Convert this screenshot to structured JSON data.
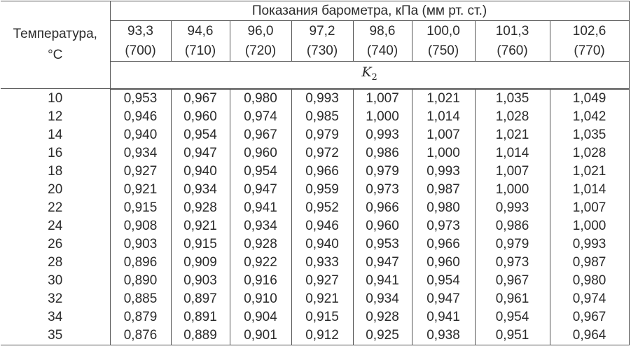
{
  "table": {
    "temp_header_line1": "Температура,",
    "temp_header_line2": "°С",
    "pressure_header": "Показания барометра, кПа (мм рт. ст.)",
    "coef_symbol": "K",
    "coef_subscript": "2",
    "pressures": [
      {
        "kpa": "93,3",
        "mmhg": "(700)"
      },
      {
        "kpa": "94,6",
        "mmhg": "(710)"
      },
      {
        "kpa": "96,0",
        "mmhg": "(720)"
      },
      {
        "kpa": "97,2",
        "mmhg": "(730)"
      },
      {
        "kpa": "98,6",
        "mmhg": "(740)"
      },
      {
        "kpa": "100,0",
        "mmhg": "(750)"
      },
      {
        "kpa": "101,3",
        "mmhg": "(760)"
      },
      {
        "kpa": "102,6",
        "mmhg": "(770)"
      }
    ],
    "rows": [
      {
        "t": "10",
        "v": [
          "0,953",
          "0,967",
          "0,980",
          "0,993",
          "1,007",
          "1,021",
          "1,035",
          "1,049"
        ]
      },
      {
        "t": "12",
        "v": [
          "0,946",
          "0,960",
          "0,974",
          "0,985",
          "1,000",
          "1,014",
          "1,028",
          "1,042"
        ]
      },
      {
        "t": "14",
        "v": [
          "0,940",
          "0,954",
          "0,967",
          "0,979",
          "0,993",
          "1,007",
          "1,021",
          "1,035"
        ]
      },
      {
        "t": "16",
        "v": [
          "0,934",
          "0,947",
          "0,960",
          "0,972",
          "0,986",
          "1,000",
          "1,014",
          "1,028"
        ]
      },
      {
        "t": "18",
        "v": [
          "0,927",
          "0,940",
          "0,954",
          "0,966",
          "0,979",
          "0,993",
          "1,007",
          "1,021"
        ]
      },
      {
        "t": "20",
        "v": [
          "0,921",
          "0,934",
          "0,947",
          "0,959",
          "0,973",
          "0,987",
          "1,000",
          "1,014"
        ]
      },
      {
        "t": "22",
        "v": [
          "0,915",
          "0,928",
          "0,941",
          "0,952",
          "0,966",
          "0,980",
          "0,993",
          "1,007"
        ]
      },
      {
        "t": "24",
        "v": [
          "0,908",
          "0,921",
          "0,934",
          "0,946",
          "0,960",
          "0,973",
          "0,986",
          "1,000"
        ]
      },
      {
        "t": "26",
        "v": [
          "0,903",
          "0,915",
          "0,928",
          "0,940",
          "0,953",
          "0,966",
          "0,979",
          "0,993"
        ]
      },
      {
        "t": "28",
        "v": [
          "0,896",
          "0,909",
          "0,922",
          "0,933",
          "0,947",
          "0,960",
          "0,973",
          "0,987"
        ]
      },
      {
        "t": "30",
        "v": [
          "0,890",
          "0,903",
          "0,916",
          "0,927",
          "0,941",
          "0,954",
          "0,967",
          "0,980"
        ]
      },
      {
        "t": "32",
        "v": [
          "0,885",
          "0,897",
          "0,910",
          "0,921",
          "0,934",
          "0,947",
          "0,961",
          "0,974"
        ]
      },
      {
        "t": "34",
        "v": [
          "0,879",
          "0,891",
          "0,904",
          "0,915",
          "0,928",
          "0,941",
          "0,954",
          "0,967"
        ]
      },
      {
        "t": "35",
        "v": [
          "0,876",
          "0,889",
          "0,901",
          "0,912",
          "0,925",
          "0,938",
          "0,951",
          "0,964"
        ]
      }
    ]
  }
}
